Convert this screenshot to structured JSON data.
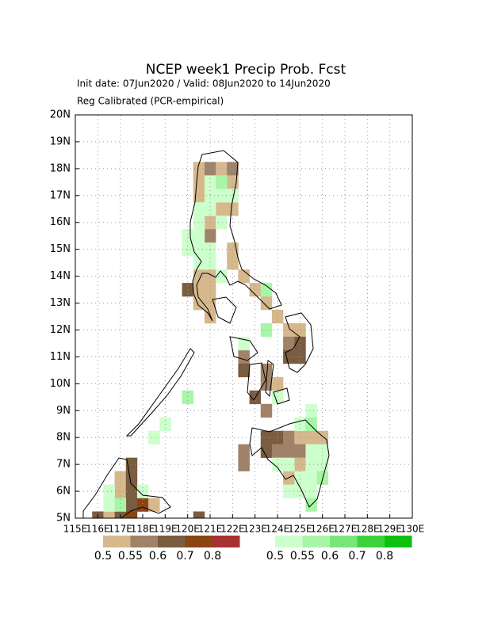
{
  "map": {
    "title": "NCEP week1 Precip Prob. Fcst",
    "subtitle": [
      "Init date: 07Jun2020 / Valid: 08Jun2020 to 14Jun2020",
      "Reg Calibrated (PCR-empirical)"
    ],
    "xlim": [
      115,
      130
    ],
    "ylim": [
      5,
      20
    ],
    "cell_size": 0.5,
    "grid": true,
    "xticks": [
      {
        "value": 115,
        "label": "115E"
      },
      {
        "value": 116,
        "label": "116E"
      },
      {
        "value": 117,
        "label": "117E"
      },
      {
        "value": 118,
        "label": "118E"
      },
      {
        "value": 119,
        "label": "119E"
      },
      {
        "value": 120,
        "label": "120E"
      },
      {
        "value": 121,
        "label": "121E"
      },
      {
        "value": 122,
        "label": "122E"
      },
      {
        "value": 123,
        "label": "123E"
      },
      {
        "value": 124,
        "label": "124E"
      },
      {
        "value": 125,
        "label": "125E"
      },
      {
        "value": 126,
        "label": "126E"
      },
      {
        "value": 127,
        "label": "127E"
      },
      {
        "value": 128,
        "label": "128E"
      },
      {
        "value": 129,
        "label": "129E"
      },
      {
        "value": 130,
        "label": "130E"
      }
    ],
    "yticks": [
      {
        "value": 5,
        "label": "5N"
      },
      {
        "value": 6,
        "label": "6N"
      },
      {
        "value": 7,
        "label": "7N"
      },
      {
        "value": 8,
        "label": "8N"
      },
      {
        "value": 9,
        "label": "9N"
      },
      {
        "value": 10,
        "label": "10N"
      },
      {
        "value": 11,
        "label": "11N"
      },
      {
        "value": 12,
        "label": "12N"
      },
      {
        "value": 13,
        "label": "13N"
      },
      {
        "value": 14,
        "label": "14N"
      },
      {
        "value": 15,
        "label": "15N"
      },
      {
        "value": 16,
        "label": "16N"
      },
      {
        "value": 17,
        "label": "17N"
      },
      {
        "value": 18,
        "label": "18N"
      },
      {
        "value": 19,
        "label": "19N"
      },
      {
        "value": 20,
        "label": "20N"
      }
    ],
    "dry_legend": {
      "colors": [
        "#d6b88c",
        "#a08268",
        "#7a5c40",
        "#8b4513",
        "#a83232"
      ],
      "labels": [
        0.5,
        0.55,
        0.6,
        0.7,
        0.8
      ]
    },
    "wet_legend": {
      "colors": [
        "#ccffcc",
        "#a8f5a8",
        "#78e678",
        "#3cd23c",
        "#10c010"
      ],
      "labels": [
        0.5,
        0.55,
        0.6,
        0.7,
        0.8
      ]
    },
    "dry_cells": [
      [
        120.25,
        17.75,
        0.5
      ],
      [
        120.75,
        17.75,
        0.55
      ],
      [
        121.25,
        17.75,
        0.5
      ],
      [
        121.75,
        17.75,
        0.55
      ],
      [
        120.25,
        17.25,
        0.5
      ],
      [
        121.75,
        17.25,
        0.5
      ],
      [
        120.25,
        16.75,
        0.5
      ],
      [
        121.25,
        16.25,
        0.5
      ],
      [
        121.75,
        16.25,
        0.5
      ],
      [
        120.75,
        15.75,
        0.5
      ],
      [
        120.75,
        15.25,
        0.55
      ],
      [
        121.75,
        14.75,
        0.5
      ],
      [
        121.75,
        14.25,
        0.5
      ],
      [
        120.25,
        13.75,
        0.5
      ],
      [
        120.75,
        13.75,
        0.5
      ],
      [
        122.25,
        13.75,
        0.5
      ],
      [
        119.75,
        13.25,
        0.6
      ],
      [
        120.25,
        13.25,
        0.5
      ],
      [
        120.75,
        13.25,
        0.5
      ],
      [
        122.75,
        13.25,
        0.5
      ],
      [
        120.25,
        12.75,
        0.5
      ],
      [
        120.75,
        12.75,
        0.5
      ],
      [
        123.25,
        12.75,
        0.5
      ],
      [
        120.75,
        12.25,
        0.5
      ],
      [
        123.75,
        12.25,
        0.5
      ],
      [
        124.25,
        11.75,
        0.5
      ],
      [
        124.75,
        11.75,
        0.5
      ],
      [
        124.25,
        11.25,
        0.55
      ],
      [
        124.75,
        11.25,
        0.6
      ],
      [
        122.25,
        10.75,
        0.55
      ],
      [
        124.25,
        10.75,
        0.6
      ],
      [
        124.75,
        10.75,
        0.6
      ],
      [
        122.25,
        10.25,
        0.6
      ],
      [
        123.25,
        10.25,
        0.55
      ],
      [
        123.25,
        9.75,
        0.55
      ],
      [
        123.75,
        9.75,
        0.5
      ],
      [
        122.75,
        9.25,
        0.6
      ],
      [
        123.25,
        8.75,
        0.55
      ],
      [
        123.25,
        7.75,
        0.6
      ],
      [
        123.75,
        7.75,
        0.6
      ],
      [
        124.25,
        7.75,
        0.55
      ],
      [
        124.75,
        7.75,
        0.5
      ],
      [
        125.25,
        7.75,
        0.5
      ],
      [
        125.75,
        7.75,
        0.5
      ],
      [
        122.25,
        7.25,
        0.55
      ],
      [
        123.25,
        7.25,
        0.6
      ],
      [
        123.75,
        7.25,
        0.55
      ],
      [
        124.25,
        7.25,
        0.55
      ],
      [
        124.75,
        7.25,
        0.55
      ],
      [
        122.25,
        6.75,
        0.55
      ],
      [
        124.75,
        6.75,
        0.5
      ],
      [
        117.25,
        6.75,
        0.6
      ],
      [
        124.25,
        6.25,
        0.5
      ],
      [
        116.75,
        6.25,
        0.5
      ],
      [
        117.25,
        6.25,
        0.6
      ],
      [
        116.75,
        5.75,
        0.5
      ],
      [
        117.25,
        5.75,
        0.6
      ],
      [
        117.25,
        5.25,
        0.6
      ],
      [
        117.75,
        5.25,
        0.7
      ],
      [
        118.25,
        5.25,
        0.5
      ],
      [
        115.75,
        4.75,
        0.6
      ],
      [
        116.25,
        4.75,
        0.5
      ],
      [
        116.75,
        4.75,
        0.6
      ],
      [
        117.25,
        4.75,
        0.7
      ],
      [
        120.25,
        4.75,
        0.6
      ]
    ],
    "wet_cells": [
      [
        120.75,
        17.25,
        0.5
      ],
      [
        121.25,
        17.25,
        0.55
      ],
      [
        120.75,
        16.75,
        0.5
      ],
      [
        121.25,
        16.75,
        0.5
      ],
      [
        121.75,
        16.75,
        0.5
      ],
      [
        120.25,
        16.25,
        0.5
      ],
      [
        120.75,
        16.25,
        0.5
      ],
      [
        120.25,
        15.75,
        0.5
      ],
      [
        121.25,
        15.75,
        0.5
      ],
      [
        119.75,
        15.25,
        0.5
      ],
      [
        120.25,
        15.25,
        0.5
      ],
      [
        119.75,
        14.75,
        0.5
      ],
      [
        120.25,
        14.75,
        0.5
      ],
      [
        120.75,
        14.75,
        0.5
      ],
      [
        120.25,
        14.25,
        0.5
      ],
      [
        120.75,
        14.25,
        0.5
      ],
      [
        121.25,
        13.75,
        0.5
      ],
      [
        123.25,
        13.25,
        0.55
      ],
      [
        123.25,
        11.75,
        0.55
      ],
      [
        122.25,
        11.25,
        0.5
      ],
      [
        119.75,
        9.25,
        0.55
      ],
      [
        123.75,
        9.25,
        0.5
      ],
      [
        125.25,
        8.75,
        0.5
      ],
      [
        118.75,
        8.25,
        0.5
      ],
      [
        124.75,
        8.25,
        0.5
      ],
      [
        125.25,
        8.25,
        0.55
      ],
      [
        118.25,
        7.75,
        0.5
      ],
      [
        125.25,
        7.25,
        0.5
      ],
      [
        125.75,
        7.25,
        0.5
      ],
      [
        123.75,
        6.75,
        0.5
      ],
      [
        124.25,
        6.75,
        0.5
      ],
      [
        125.25,
        6.75,
        0.5
      ],
      [
        125.75,
        6.75,
        0.5
      ],
      [
        124.75,
        6.25,
        0.5
      ],
      [
        125.25,
        6.25,
        0.5
      ],
      [
        125.75,
        6.25,
        0.55
      ],
      [
        124.25,
        5.75,
        0.5
      ],
      [
        124.75,
        5.75,
        0.5
      ],
      [
        125.25,
        5.75,
        0.5
      ],
      [
        116.25,
        5.75,
        0.5
      ],
      [
        117.75,
        5.75,
        0.5
      ],
      [
        125.25,
        5.25,
        0.55
      ],
      [
        116.25,
        5.25,
        0.5
      ],
      [
        116.75,
        5.25,
        0.55
      ]
    ]
  }
}
